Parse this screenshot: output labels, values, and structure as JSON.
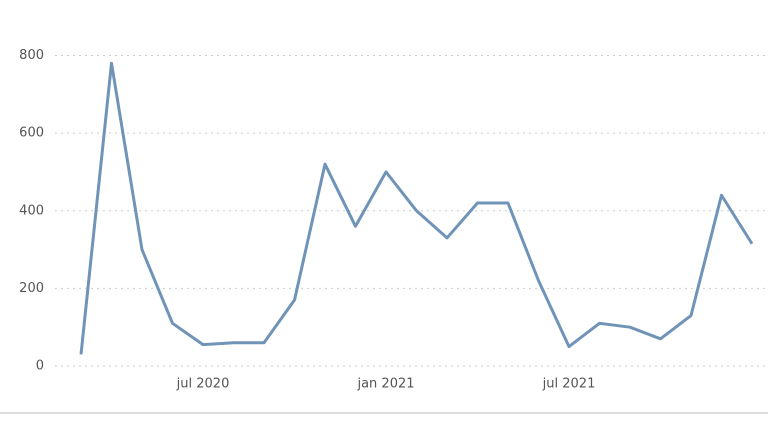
{
  "chart_data": {
    "type": "line",
    "x": [
      "2020-03",
      "2020-04",
      "2020-05",
      "2020-06",
      "2020-07",
      "2020-08",
      "2020-09",
      "2020-10",
      "2020-11",
      "2020-12",
      "2021-01",
      "2021-02",
      "2021-03",
      "2021-04",
      "2021-05",
      "2021-06",
      "2021-07",
      "2021-08",
      "2021-09",
      "2021-10",
      "2021-11",
      "2021-12",
      "2022-01"
    ],
    "series": [
      {
        "color": "#7093b8",
        "values": [
          30,
          780,
          300,
          110,
          55,
          60,
          60,
          170,
          520,
          360,
          500,
          400,
          330,
          420,
          420,
          220,
          50,
          110,
          100,
          70,
          130,
          440,
          315
        ]
      }
    ],
    "ylim": [
      0,
      840
    ],
    "yticks": [
      0,
      200,
      400,
      600,
      800
    ],
    "xticks": [
      {
        "value": "2020-07",
        "label": "jul 2020"
      },
      {
        "value": "2021-01",
        "label": "jan 2021"
      },
      {
        "value": "2021-07",
        "label": "jul 2021"
      }
    ],
    "grid": true
  }
}
